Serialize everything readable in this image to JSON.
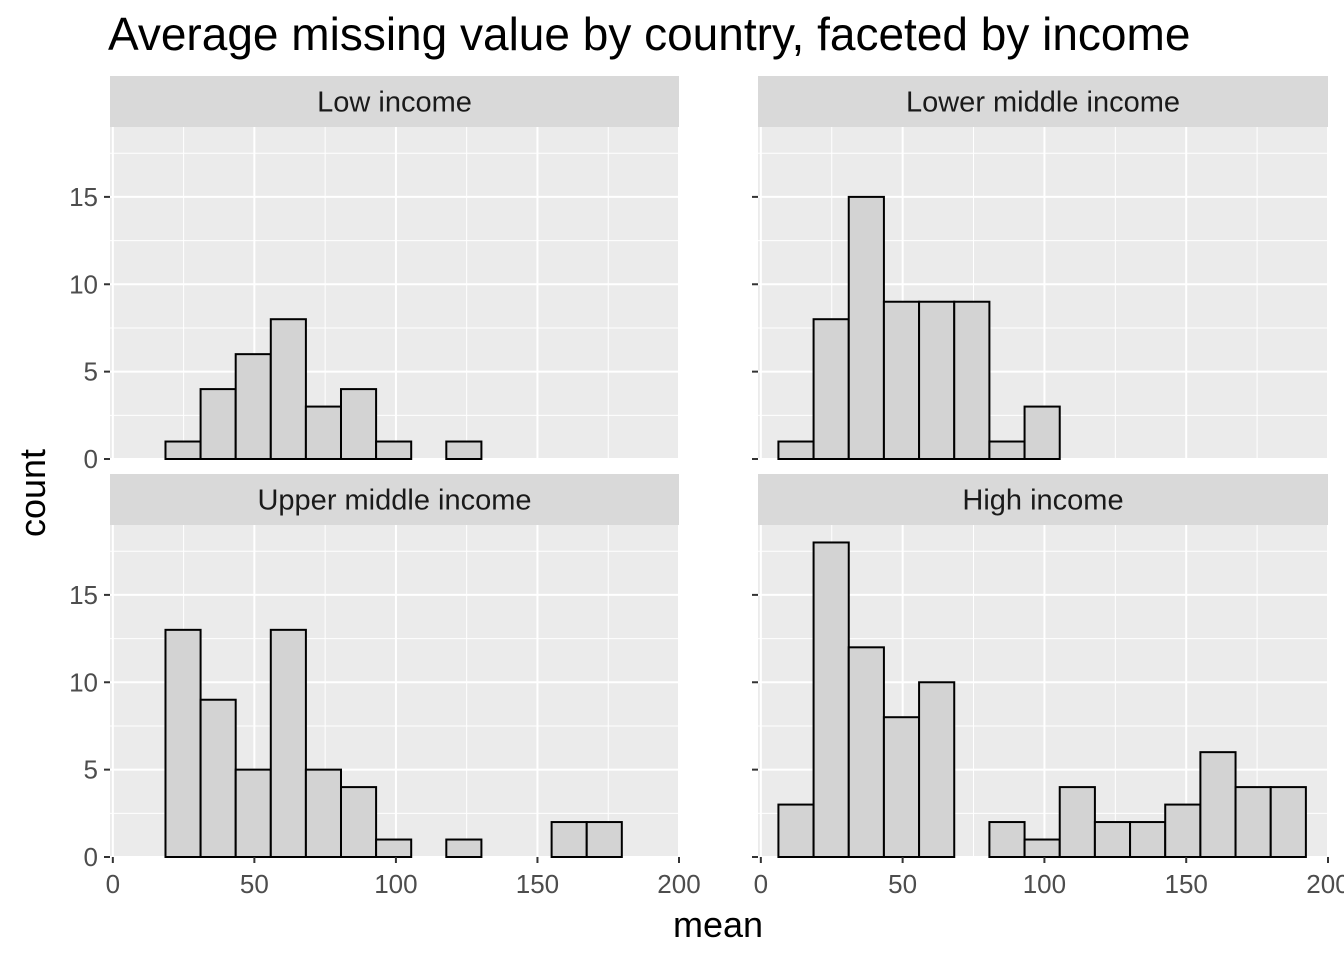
{
  "chart_data": {
    "type": "bar",
    "title": "Average missing value by country, faceted by income",
    "xlabel": "mean",
    "ylabel": "count",
    "xlim": [
      -1,
      200
    ],
    "ylim": [
      0,
      19
    ],
    "x_ticks": [
      0,
      50,
      100,
      150,
      200
    ],
    "y_ticks": [
      0,
      5,
      10,
      15
    ],
    "grid": true,
    "bin_width": 12.4,
    "bin_edges": [
      6.2,
      18.6,
      31.0,
      43.4,
      55.8,
      68.2,
      80.6,
      93.0,
      105.4,
      117.8,
      130.2,
      142.6,
      155.0,
      167.4,
      179.8,
      192.2
    ],
    "colors": {
      "bar_fill": "#d3d3d3",
      "bar_outline": "#000000",
      "panel_bg": "#ebebeb",
      "strip_bg": "#d9d9d9",
      "grid": "#ffffff"
    },
    "facets": [
      {
        "label": "Low income",
        "counts": [
          0,
          1,
          4,
          6,
          8,
          3,
          4,
          1,
          0,
          1,
          0,
          0,
          0,
          0,
          0
        ]
      },
      {
        "label": "Lower middle income",
        "counts": [
          1,
          8,
          15,
          9,
          9,
          9,
          1,
          3,
          0,
          0,
          0,
          0,
          0,
          0,
          0
        ]
      },
      {
        "label": "Upper middle income",
        "counts": [
          0,
          13,
          9,
          5,
          13,
          5,
          4,
          1,
          0,
          1,
          0,
          0,
          2,
          2,
          0
        ]
      },
      {
        "label": "High income",
        "counts": [
          3,
          18,
          12,
          8,
          10,
          0,
          2,
          1,
          4,
          2,
          2,
          3,
          6,
          4,
          4
        ]
      }
    ]
  }
}
